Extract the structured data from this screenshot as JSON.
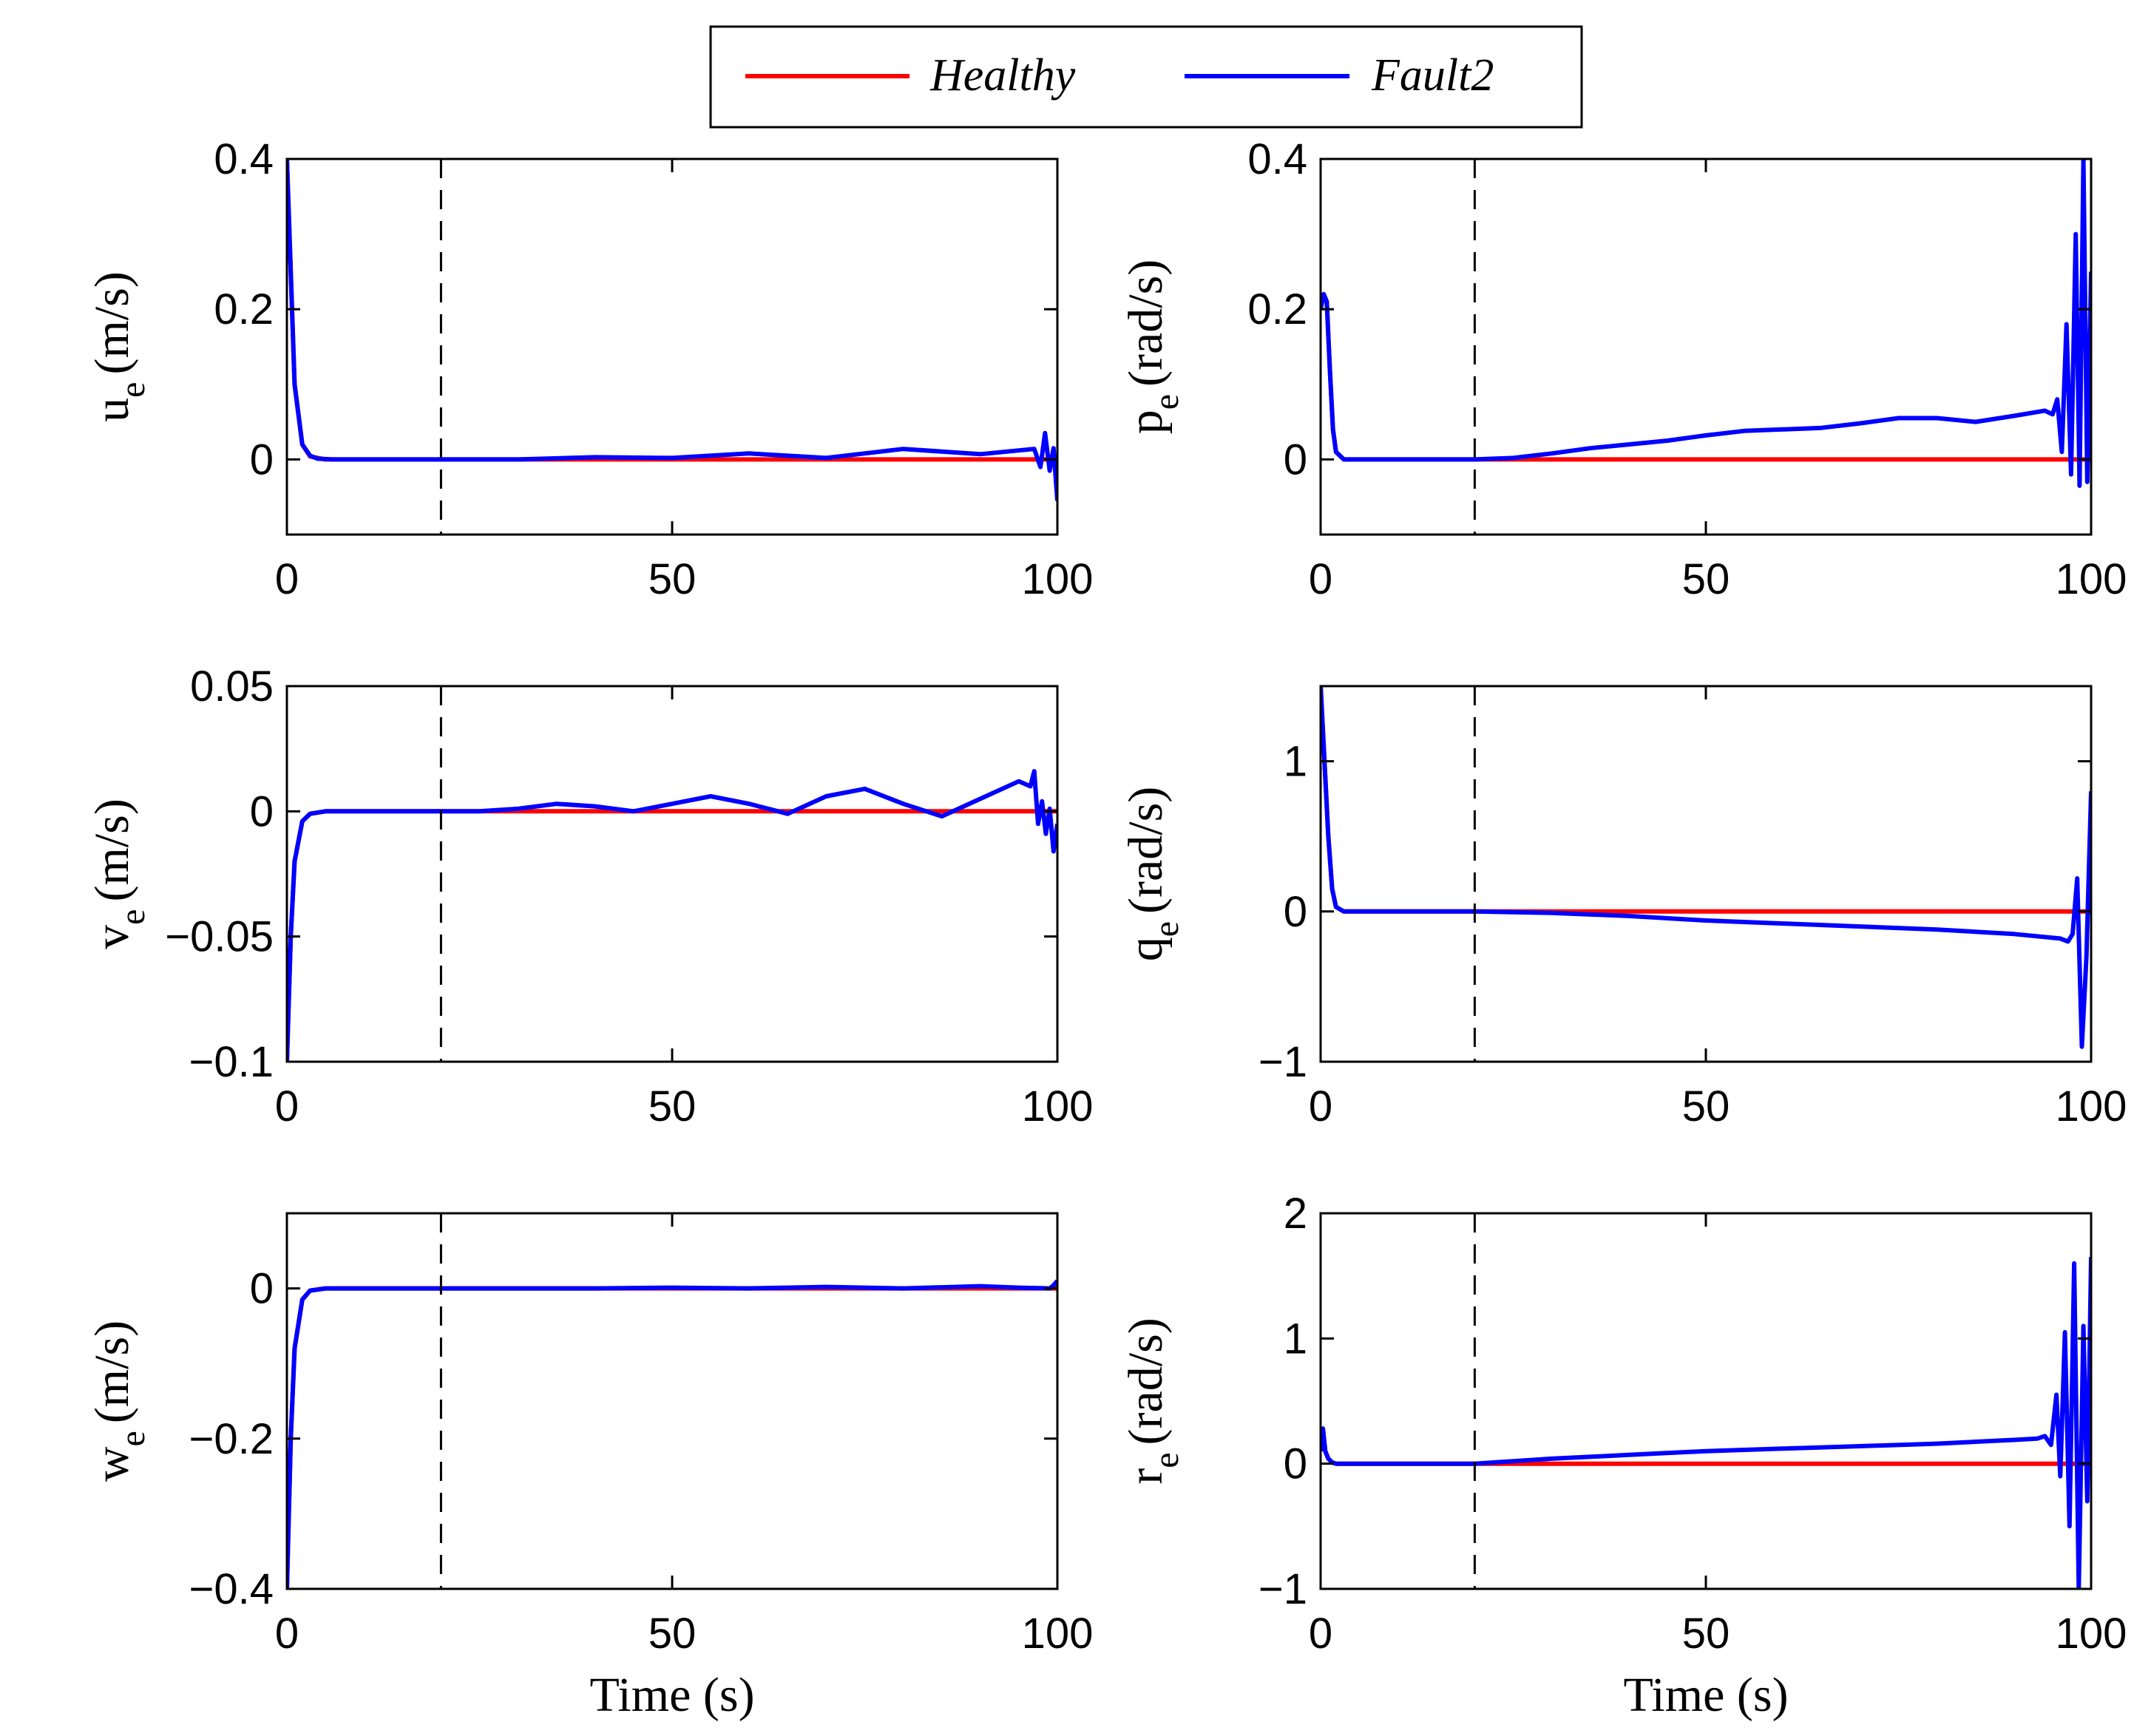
{
  "colors": {
    "healthy": "#ff0000",
    "fault": "#0000ff",
    "axis": "#000000",
    "fault_marker": "#000000"
  },
  "legend": {
    "entries": [
      {
        "label": "Healthy",
        "color": "#ff0000"
      },
      {
        "label": "Fault2",
        "color": "#0000ff"
      }
    ]
  },
  "chart_data": [
    {
      "type": "line",
      "id": "ue",
      "ylabel_main": "u",
      "ylabel_sub": "e",
      "ylabel_unit": "(m/s)",
      "xlabel": "",
      "xlim": [
        0,
        100
      ],
      "ylim": [
        -0.1,
        0.4
      ],
      "xticks": [
        "0",
        "50",
        "100"
      ],
      "yticks": [
        "0",
        "0.2",
        "0.4"
      ],
      "ytick_values": [
        0,
        0.2,
        0.4
      ],
      "fault_time": 20,
      "series": [
        {
          "name": "Healthy",
          "x": [
            0,
            1,
            2,
            3,
            5,
            100
          ],
          "y": [
            0.4,
            0.1,
            0.02,
            0.004,
            0,
            0
          ]
        },
        {
          "name": "Fault2",
          "x": [
            0,
            0.5,
            1,
            2,
            3,
            4,
            6,
            20,
            30,
            40,
            50,
            60,
            70,
            80,
            90,
            95,
            97,
            97.8,
            98.4,
            99,
            99.5,
            100
          ],
          "y": [
            0.4,
            0.25,
            0.1,
            0.02,
            0.005,
            0.001,
            0,
            0,
            0,
            0.003,
            0.002,
            0.008,
            0.002,
            0.014,
            0.007,
            0.012,
            0.014,
            -0.01,
            0.035,
            -0.015,
            0.015,
            -0.055
          ]
        }
      ]
    },
    {
      "type": "line",
      "id": "pe",
      "ylabel_main": "p",
      "ylabel_sub": "e",
      "ylabel_unit": "(rad/s)",
      "xlabel": "",
      "xlim": [
        0,
        100
      ],
      "ylim": [
        -0.1,
        0.4
      ],
      "xticks": [
        "0",
        "50",
        "100"
      ],
      "yticks": [
        "0",
        "0.2",
        "0.4"
      ],
      "ytick_values": [
        0,
        0.2,
        0.4
      ],
      "fault_time": 20,
      "series": [
        {
          "name": "Healthy",
          "x": [
            0,
            0.4,
            0.8,
            1.2,
            1.6,
            2,
            3,
            100
          ],
          "y": [
            0.2,
            0.22,
            0.21,
            0.12,
            0.04,
            0.01,
            0,
            0
          ]
        },
        {
          "name": "Fault2",
          "x": [
            0,
            0.4,
            0.8,
            1.2,
            1.6,
            2,
            3,
            20,
            25,
            30,
            35,
            40,
            45,
            50,
            55,
            60,
            65,
            70,
            75,
            80,
            85,
            90,
            94,
            95,
            95.6,
            96.2,
            96.8,
            97.4,
            98,
            98.5,
            99,
            99.5,
            100
          ],
          "y": [
            0.2,
            0.22,
            0.21,
            0.12,
            0.04,
            0.01,
            0,
            0,
            0.002,
            0.008,
            0.015,
            0.02,
            0.025,
            0.032,
            0.038,
            0.04,
            0.042,
            0.048,
            0.055,
            0.055,
            0.05,
            0.058,
            0.065,
            0.06,
            0.08,
            0.01,
            0.18,
            -0.02,
            0.3,
            -0.035,
            0.4,
            -0.03,
            0.25
          ]
        }
      ]
    },
    {
      "type": "line",
      "id": "ve",
      "ylabel_main": "v",
      "ylabel_sub": "e",
      "ylabel_unit": "(m/s)",
      "xlabel": "",
      "xlim": [
        0,
        100
      ],
      "ylim": [
        -0.1,
        0.05
      ],
      "xticks": [
        "0",
        "50",
        "100"
      ],
      "yticks": [
        "−0.1",
        "−0.05",
        "0",
        "0.05"
      ],
      "ytick_values": [
        -0.1,
        -0.05,
        0,
        0.05
      ],
      "fault_time": 20,
      "series": [
        {
          "name": "Healthy",
          "x": [
            0,
            0.5,
            1,
            2,
            3,
            5,
            100
          ],
          "y": [
            -0.1,
            -0.05,
            -0.02,
            -0.004,
            -0.001,
            0,
            0
          ]
        },
        {
          "name": "Fault2",
          "x": [
            0,
            0.5,
            1,
            2,
            3,
            5,
            20,
            25,
            30,
            35,
            40,
            45,
            50,
            55,
            60,
            65,
            70,
            75,
            80,
            85,
            90,
            95,
            96.5,
            97,
            97.5,
            98,
            98.5,
            99,
            99.5,
            100
          ],
          "y": [
            -0.1,
            -0.05,
            -0.02,
            -0.004,
            -0.001,
            0,
            0,
            0,
            0.001,
            0.003,
            0.002,
            0,
            0.003,
            0.006,
            0.003,
            -0.001,
            0.006,
            0.009,
            0.003,
            -0.002,
            0.005,
            0.012,
            0.01,
            0.016,
            -0.005,
            0.004,
            -0.009,
            0.001,
            -0.016,
            -0.005
          ]
        }
      ]
    },
    {
      "type": "line",
      "id": "qe",
      "ylabel_main": "q",
      "ylabel_sub": "e",
      "ylabel_unit": "(rad/s)",
      "xlabel": "",
      "xlim": [
        0,
        100
      ],
      "ylim": [
        -1,
        1.5
      ],
      "xticks": [
        "0",
        "50",
        "100"
      ],
      "yticks": [
        "−1",
        "0",
        "1"
      ],
      "ytick_values": [
        -1,
        0,
        1
      ],
      "fault_time": 20,
      "series": [
        {
          "name": "Healthy",
          "x": [
            0,
            0.5,
            1,
            1.5,
            2,
            3,
            100
          ],
          "y": [
            1.5,
            1.0,
            0.5,
            0.15,
            0.03,
            0,
            0
          ]
        },
        {
          "name": "Fault2",
          "x": [
            0,
            0.5,
            1,
            1.5,
            2,
            3,
            20,
            30,
            40,
            50,
            60,
            70,
            80,
            90,
            96,
            97,
            97.6,
            98.2,
            98.8,
            99.4,
            100
          ],
          "y": [
            1.5,
            1.0,
            0.5,
            0.15,
            0.03,
            0,
            0,
            -0.01,
            -0.03,
            -0.06,
            -0.08,
            -0.1,
            -0.12,
            -0.15,
            -0.18,
            -0.2,
            -0.15,
            0.22,
            -0.9,
            -0.3,
            0.8
          ]
        }
      ]
    },
    {
      "type": "line",
      "id": "we",
      "ylabel_main": "w",
      "ylabel_sub": "e",
      "ylabel_unit": "(m/s)",
      "xlabel": "Time (s)",
      "xlim": [
        0,
        100
      ],
      "ylim": [
        -0.4,
        0.1
      ],
      "xticks": [
        "0",
        "50",
        "100"
      ],
      "yticks": [
        "−0.4",
        "−0.2",
        "0"
      ],
      "ytick_values": [
        -0.4,
        -0.2,
        0
      ],
      "fault_time": 20,
      "series": [
        {
          "name": "Healthy",
          "x": [
            0,
            0.5,
            1,
            2,
            3,
            5,
            100
          ],
          "y": [
            -0.4,
            -0.2,
            -0.08,
            -0.015,
            -0.003,
            0,
            0
          ]
        },
        {
          "name": "Fault2",
          "x": [
            0,
            0.5,
            1,
            2,
            3,
            5,
            20,
            40,
            50,
            60,
            70,
            80,
            90,
            95,
            99,
            99.5,
            100
          ],
          "y": [
            -0.4,
            -0.2,
            -0.08,
            -0.015,
            -0.003,
            0,
            0,
            0,
            0.001,
            0,
            0.002,
            0,
            0.003,
            0.001,
            0,
            0.004,
            0.01
          ]
        }
      ]
    },
    {
      "type": "line",
      "id": "re",
      "ylabel_main": "r",
      "ylabel_sub": "e",
      "ylabel_unit": "(rad/s)",
      "xlabel": "Time (s)",
      "xlim": [
        0,
        100
      ],
      "ylim": [
        -1,
        2
      ],
      "xticks": [
        "0",
        "50",
        "100"
      ],
      "yticks": [
        "−1",
        "0",
        "1",
        "2"
      ],
      "ytick_values": [
        -1,
        0,
        1,
        2
      ],
      "fault_time": 20,
      "series": [
        {
          "name": "Healthy",
          "x": [
            0,
            0.3,
            0.6,
            1,
            1.5,
            2,
            100
          ],
          "y": [
            0.1,
            0.28,
            0.1,
            0.04,
            0.01,
            0,
            0
          ]
        },
        {
          "name": "Fault2",
          "x": [
            0,
            0.3,
            0.6,
            1,
            1.5,
            2,
            20,
            30,
            40,
            50,
            60,
            70,
            80,
            90,
            93,
            94,
            94.8,
            95.5,
            96,
            96.6,
            97.2,
            97.8,
            98.4,
            99,
            99.5,
            100
          ],
          "y": [
            0.1,
            0.28,
            0.1,
            0.04,
            0.01,
            0,
            0,
            0.04,
            0.07,
            0.1,
            0.12,
            0.14,
            0.16,
            0.19,
            0.2,
            0.22,
            0.15,
            0.55,
            -0.1,
            1.05,
            -0.5,
            1.6,
            -1.0,
            1.1,
            -0.3,
            1.65
          ]
        }
      ]
    }
  ]
}
